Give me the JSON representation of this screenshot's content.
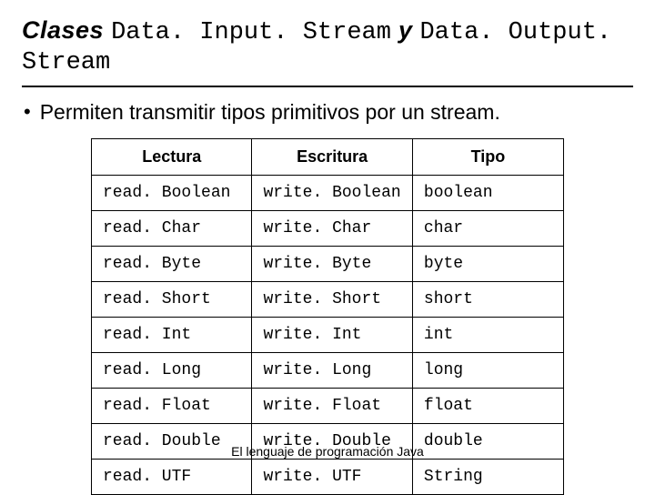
{
  "title": {
    "word1": "Clases ",
    "code1": "Data. Input. Stream",
    "word2": " y ",
    "code2": "Data. Output. Stream"
  },
  "bullet": {
    "dot": "•",
    "text": "Permiten transmitir tipos primitivos por un stream."
  },
  "table": {
    "headers": [
      "Lectura",
      "Escritura",
      "Tipo"
    ],
    "rows": [
      [
        "read. Boolean",
        "write. Boolean",
        "boolean"
      ],
      [
        "read. Char",
        "write. Char",
        "char"
      ],
      [
        "read. Byte",
        "write. Byte",
        "byte"
      ],
      [
        "read. Short",
        "write. Short",
        "short"
      ],
      [
        "read. Int",
        "write. Int",
        "int"
      ],
      [
        "read. Long",
        "write. Long",
        "long"
      ],
      [
        "read. Float",
        "write. Float",
        "float"
      ],
      [
        "read. Double",
        "write. Double",
        "double"
      ],
      [
        "read. UTF",
        "write. UTF",
        "String"
      ]
    ],
    "col_widths": [
      "34%",
      "34%",
      "32%"
    ]
  },
  "footer": "El lenguaje de programación Java"
}
